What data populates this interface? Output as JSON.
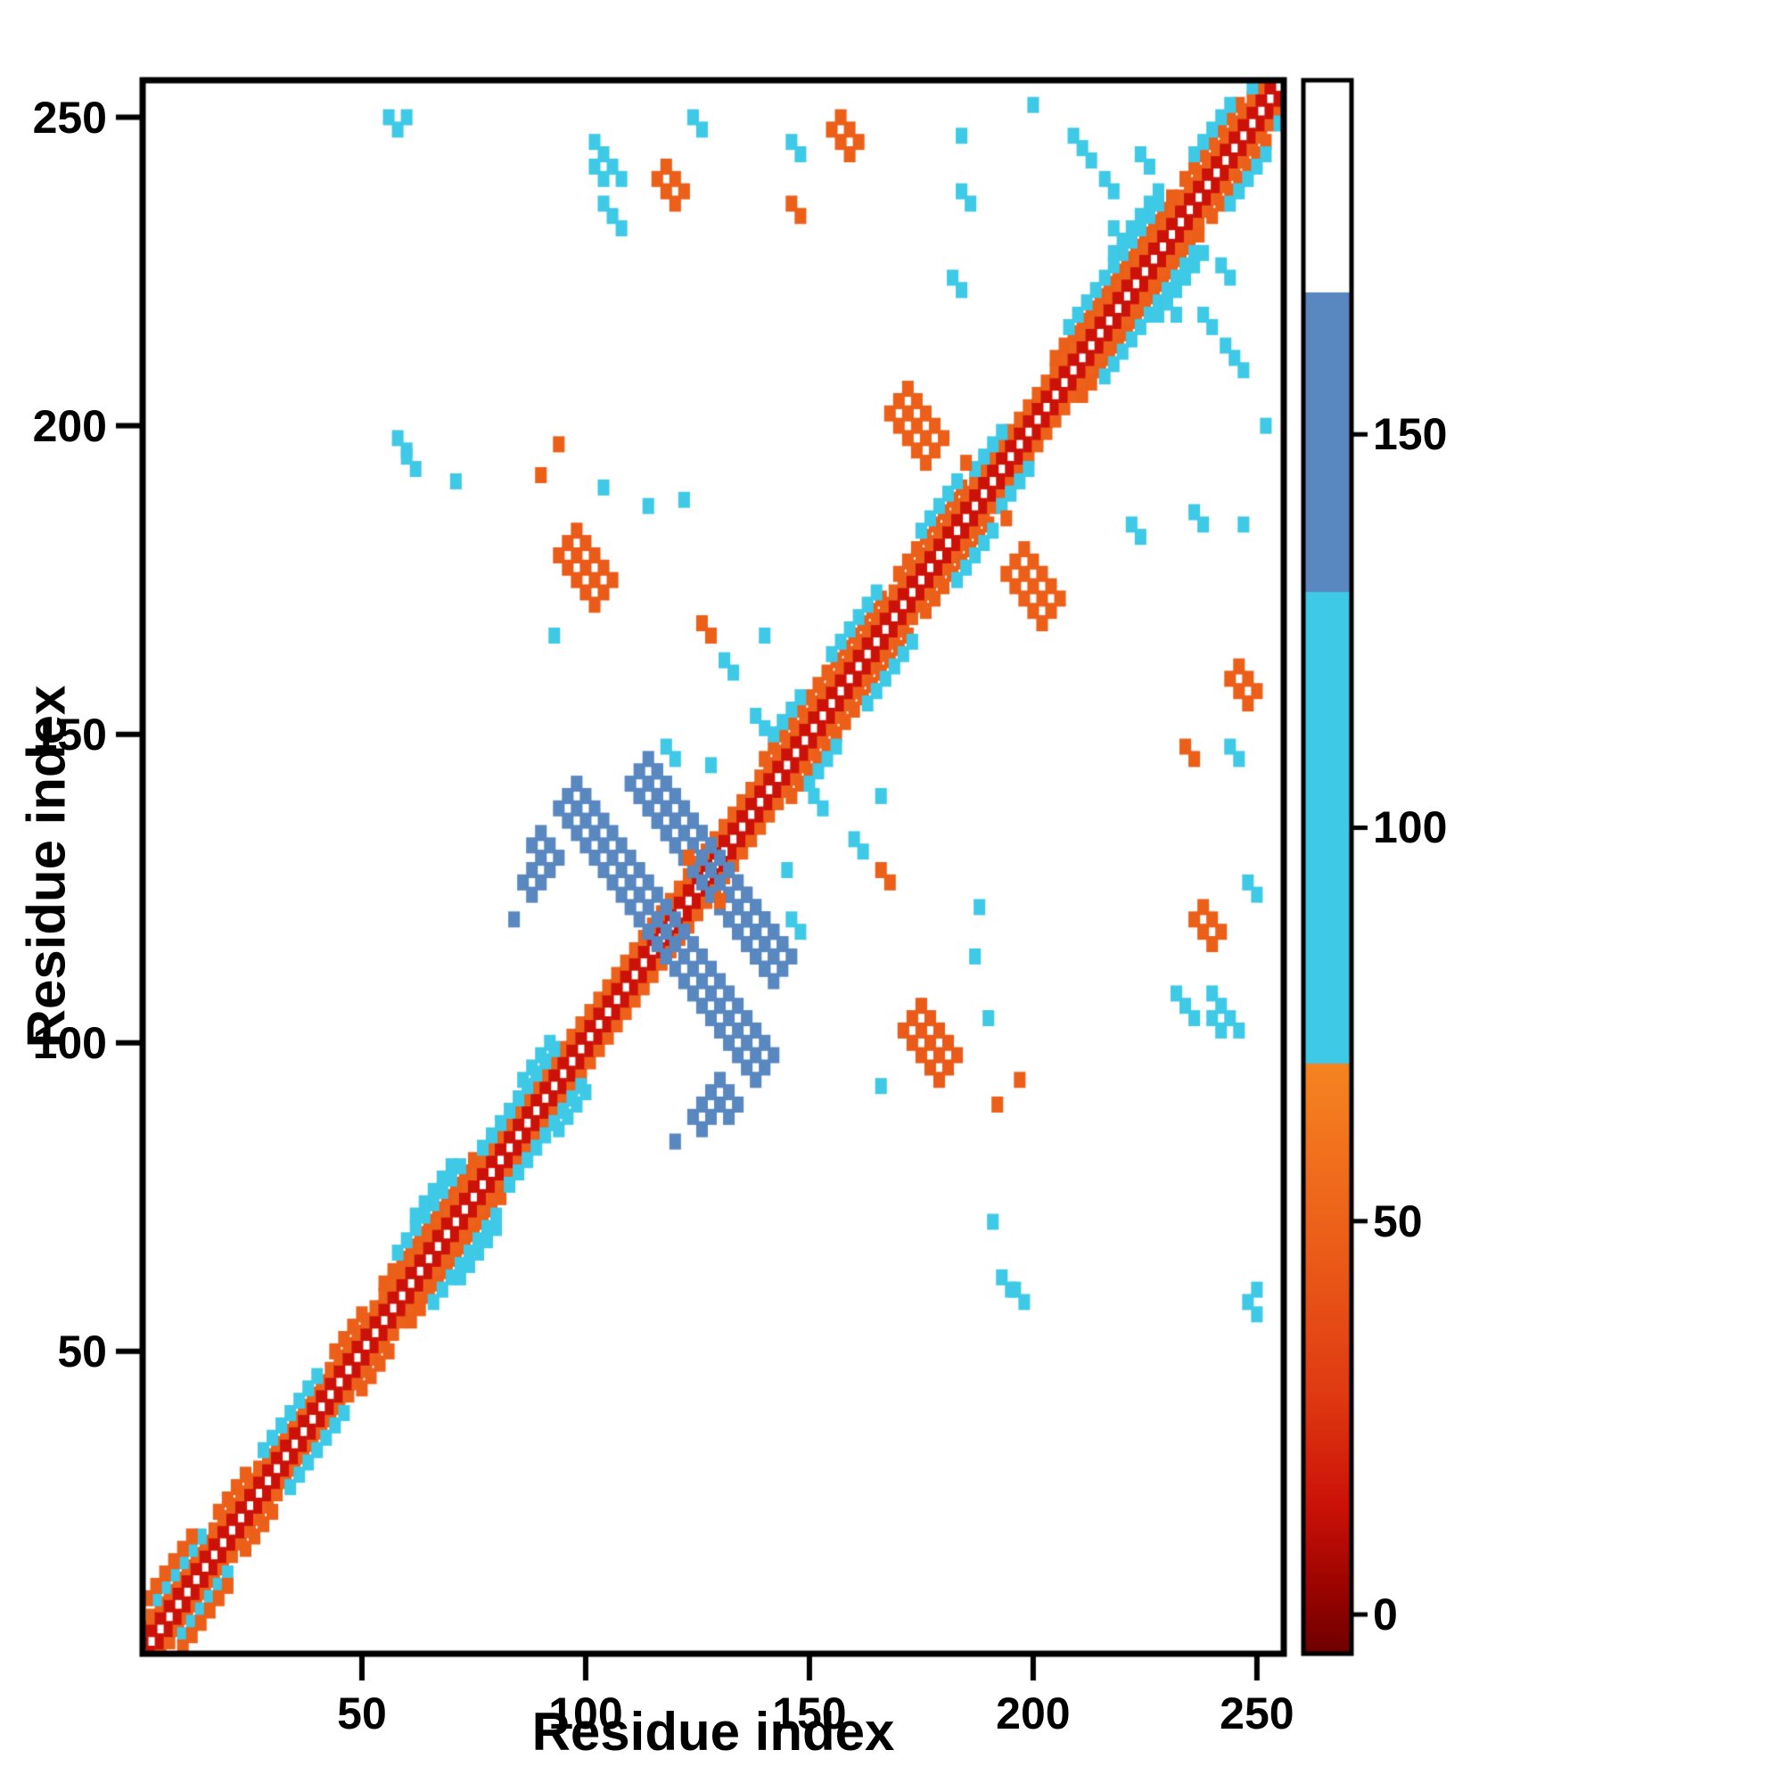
{
  "chart_data": {
    "type": "heatmap",
    "title": "",
    "xlabel": "Residue index",
    "ylabel": "Residue index",
    "xlim": [
      1,
      256
    ],
    "ylim": [
      1,
      256
    ],
    "xticks": [
      50,
      100,
      150,
      200,
      250
    ],
    "yticks": [
      50,
      100,
      150,
      200,
      250
    ],
    "grid": false,
    "background": "#ffffff",
    "frame_color": "#000000",
    "symmetric": true,
    "cell_draw_residues": 2.6,
    "colorbar": {
      "position": "right",
      "ticks": [
        0,
        50,
        100,
        150
      ],
      "domain": [
        -5,
        195
      ],
      "stops": [
        {
          "v": -5,
          "c": "#6e0000"
        },
        {
          "v": 4,
          "c": "#9e0400"
        },
        {
          "v": 14,
          "c": "#cc1208"
        },
        {
          "v": 28,
          "c": "#e03a12"
        },
        {
          "v": 45,
          "c": "#ea5a18"
        },
        {
          "v": 60,
          "c": "#f2731e"
        },
        {
          "v": 70,
          "c": "#f58420"
        },
        {
          "v": 70.01,
          "c": "#3ec9e7"
        },
        {
          "v": 130,
          "c": "#3ec9e7"
        },
        {
          "v": 130.01,
          "c": "#5987c0"
        },
        {
          "v": 168,
          "c": "#5987c0"
        },
        {
          "v": 168.01,
          "c": "#ffffff"
        },
        {
          "v": 195,
          "c": "#ffffff"
        }
      ]
    },
    "diagonal_band": {
      "range": [
        1,
        256
      ],
      "offsets": [
        {
          "cells": 1,
          "value": 14
        },
        {
          "cells": 2,
          "value": 50
        }
      ]
    },
    "diagonal_patches": [
      {
        "from": 4,
        "to": 14,
        "off": [
          3
        ],
        "v": 100
      },
      {
        "from": 2,
        "to": 13,
        "off": [
          4
        ],
        "v": 48
      },
      {
        "from": 18,
        "to": 24,
        "off": [
          3
        ],
        "v": 48
      },
      {
        "from": 28,
        "to": 40,
        "off": [
          3
        ],
        "v": 100
      },
      {
        "from": 44,
        "to": 50,
        "off": [
          3
        ],
        "v": 48
      },
      {
        "from": 55,
        "to": 75,
        "off": [
          3
        ],
        "v": 48
      },
      {
        "from": 58,
        "to": 72,
        "off": [
          4
        ],
        "v": 100
      },
      {
        "from": 62,
        "to": 70,
        "off": [
          5
        ],
        "v": 100
      },
      {
        "from": 77,
        "to": 94,
        "off": [
          3
        ],
        "v": 100
      },
      {
        "from": 86,
        "to": 93,
        "off": [
          4
        ],
        "v": 100
      },
      {
        "from": 140,
        "to": 150,
        "off": [
          3
        ],
        "v": 48
      },
      {
        "from": 142,
        "to": 149,
        "off": [
          4
        ],
        "v": 100
      },
      {
        "from": 152,
        "to": 167,
        "off": [
          3
        ],
        "v": 48
      },
      {
        "from": 155,
        "to": 165,
        "off": [
          4
        ],
        "v": 100
      },
      {
        "from": 170,
        "to": 184,
        "off": [
          3
        ],
        "v": 48
      },
      {
        "from": 175,
        "to": 183,
        "off": [
          4
        ],
        "v": 100
      },
      {
        "from": 187,
        "to": 193,
        "off": [
          3
        ],
        "v": 100
      },
      {
        "from": 205,
        "to": 231,
        "off": [
          3
        ],
        "v": 48
      },
      {
        "from": 208,
        "to": 229,
        "off": [
          4
        ],
        "v": 100
      },
      {
        "from": 218,
        "to": 229,
        "off": [
          5
        ],
        "v": 100
      },
      {
        "from": 234,
        "to": 246,
        "off": [
          3
        ],
        "v": 48
      },
      {
        "from": 236,
        "to": 245,
        "off": [
          4
        ],
        "v": 100
      },
      {
        "from": 249,
        "to": 256,
        "off": [
          3
        ],
        "v": 100
      },
      {
        "from": 252,
        "to": 256,
        "off": [
          4
        ],
        "v": 48
      }
    ],
    "clusters": [
      {
        "x": 96,
        "y": 140,
        "len": 13,
        "t": 3,
        "dir": "anti",
        "v": 150
      },
      {
        "x": 112,
        "y": 144,
        "len": 16,
        "t": 3,
        "dir": "anti",
        "v": 150
      },
      {
        "x": 86,
        "y": 126,
        "len": 2,
        "t": 2,
        "dir": "anti",
        "v": 150
      },
      {
        "x": 128,
        "y": 92,
        "len": 3,
        "t": 2,
        "dir": "anti",
        "v": 150
      },
      {
        "x": 84,
        "y": 120,
        "len": 1,
        "t": 1,
        "dir": "dot",
        "v": 150
      },
      {
        "x": 56,
        "y": 250,
        "len": 2,
        "t": 1,
        "dir": "anti",
        "v": 100
      },
      {
        "x": 102,
        "y": 246,
        "len": 4,
        "t": 1,
        "dir": "anti",
        "v": 100
      },
      {
        "x": 146,
        "y": 246,
        "len": 2,
        "t": 1,
        "dir": "anti",
        "v": 100
      },
      {
        "x": 184,
        "y": 247,
        "len": 1,
        "t": 1,
        "dir": "dot",
        "v": 100
      },
      {
        "x": 209,
        "y": 247,
        "len": 3,
        "t": 1,
        "dir": "anti",
        "v": 100
      },
      {
        "x": 216,
        "y": 240,
        "len": 2,
        "t": 1,
        "dir": "anti",
        "v": 100
      },
      {
        "x": 218,
        "y": 232,
        "len": 2,
        "t": 1,
        "dir": "anti",
        "v": 100
      },
      {
        "x": 224,
        "y": 244,
        "len": 2,
        "t": 1,
        "dir": "anti",
        "v": 100
      },
      {
        "x": 58,
        "y": 198,
        "len": 2,
        "t": 1,
        "dir": "anti",
        "v": 100
      },
      {
        "x": 71,
        "y": 191,
        "len": 1,
        "t": 1,
        "dir": "dot",
        "v": 100
      },
      {
        "x": 104,
        "y": 190,
        "len": 1,
        "t": 1,
        "dir": "dot",
        "v": 100
      },
      {
        "x": 114,
        "y": 187,
        "len": 1,
        "t": 1,
        "dir": "dot",
        "v": 100
      },
      {
        "x": 131,
        "y": 162,
        "len": 2,
        "t": 1,
        "dir": "anti",
        "v": 100
      },
      {
        "x": 138,
        "y": 153,
        "len": 2,
        "t": 1,
        "dir": "anti",
        "v": 100
      },
      {
        "x": 128,
        "y": 145,
        "len": 1,
        "t": 1,
        "dir": "dot",
        "v": 100
      },
      {
        "x": 140,
        "y": 166,
        "len": 1,
        "t": 1,
        "dir": "dot",
        "v": 100
      },
      {
        "x": 146,
        "y": 120,
        "len": 2,
        "t": 1,
        "dir": "anti",
        "v": 100
      },
      {
        "x": 188,
        "y": 122,
        "len": 1,
        "t": 1,
        "dir": "dot",
        "v": 100
      },
      {
        "x": 232,
        "y": 108,
        "len": 3,
        "t": 1,
        "dir": "anti",
        "v": 100
      },
      {
        "x": 240,
        "y": 104,
        "len": 2,
        "t": 1,
        "dir": "anti",
        "v": 100
      },
      {
        "x": 248,
        "y": 126,
        "len": 2,
        "t": 1,
        "dir": "anti",
        "v": 100
      },
      {
        "x": 252,
        "y": 200,
        "len": 1,
        "t": 1,
        "dir": "dot",
        "v": 100
      },
      {
        "x": 222,
        "y": 184,
        "len": 2,
        "t": 1,
        "dir": "anti",
        "v": 100
      },
      {
        "x": 236,
        "y": 186,
        "len": 2,
        "t": 1,
        "dir": "anti",
        "v": 100
      },
      {
        "x": 166,
        "y": 93,
        "len": 1,
        "t": 1,
        "dir": "dot",
        "v": 100
      },
      {
        "x": 250,
        "y": 60,
        "len": 1,
        "t": 1,
        "dir": "dot",
        "v": 100
      },
      {
        "x": 193,
        "y": 62,
        "len": 2,
        "t": 1,
        "dir": "anti",
        "v": 100
      },
      {
        "x": 116,
        "y": 240,
        "len": 3,
        "t": 2,
        "dir": "anti",
        "v": 48
      },
      {
        "x": 146,
        "y": 236,
        "len": 2,
        "t": 1,
        "dir": "anti",
        "v": 48
      },
      {
        "x": 94,
        "y": 197,
        "len": 1,
        "t": 1,
        "dir": "dot",
        "v": 48
      },
      {
        "x": 96,
        "y": 181,
        "len": 5,
        "t": 3,
        "dir": "anti",
        "v": 45
      },
      {
        "x": 126,
        "y": 168,
        "len": 2,
        "t": 1,
        "dir": "anti",
        "v": 48
      },
      {
        "x": 170,
        "y": 204,
        "len": 5,
        "t": 3,
        "dir": "anti",
        "v": 48
      },
      {
        "x": 185,
        "y": 194,
        "len": 1,
        "t": 1,
        "dir": "dot",
        "v": 48
      },
      {
        "x": 244,
        "y": 159,
        "len": 3,
        "t": 2,
        "dir": "anti",
        "v": 48
      },
      {
        "x": 192,
        "y": 90,
        "len": 1,
        "t": 1,
        "dir": "dot",
        "v": 48
      },
      {
        "x": 130,
        "y": 123,
        "len": 1,
        "t": 1,
        "dir": "dot",
        "v": 48
      }
    ]
  }
}
